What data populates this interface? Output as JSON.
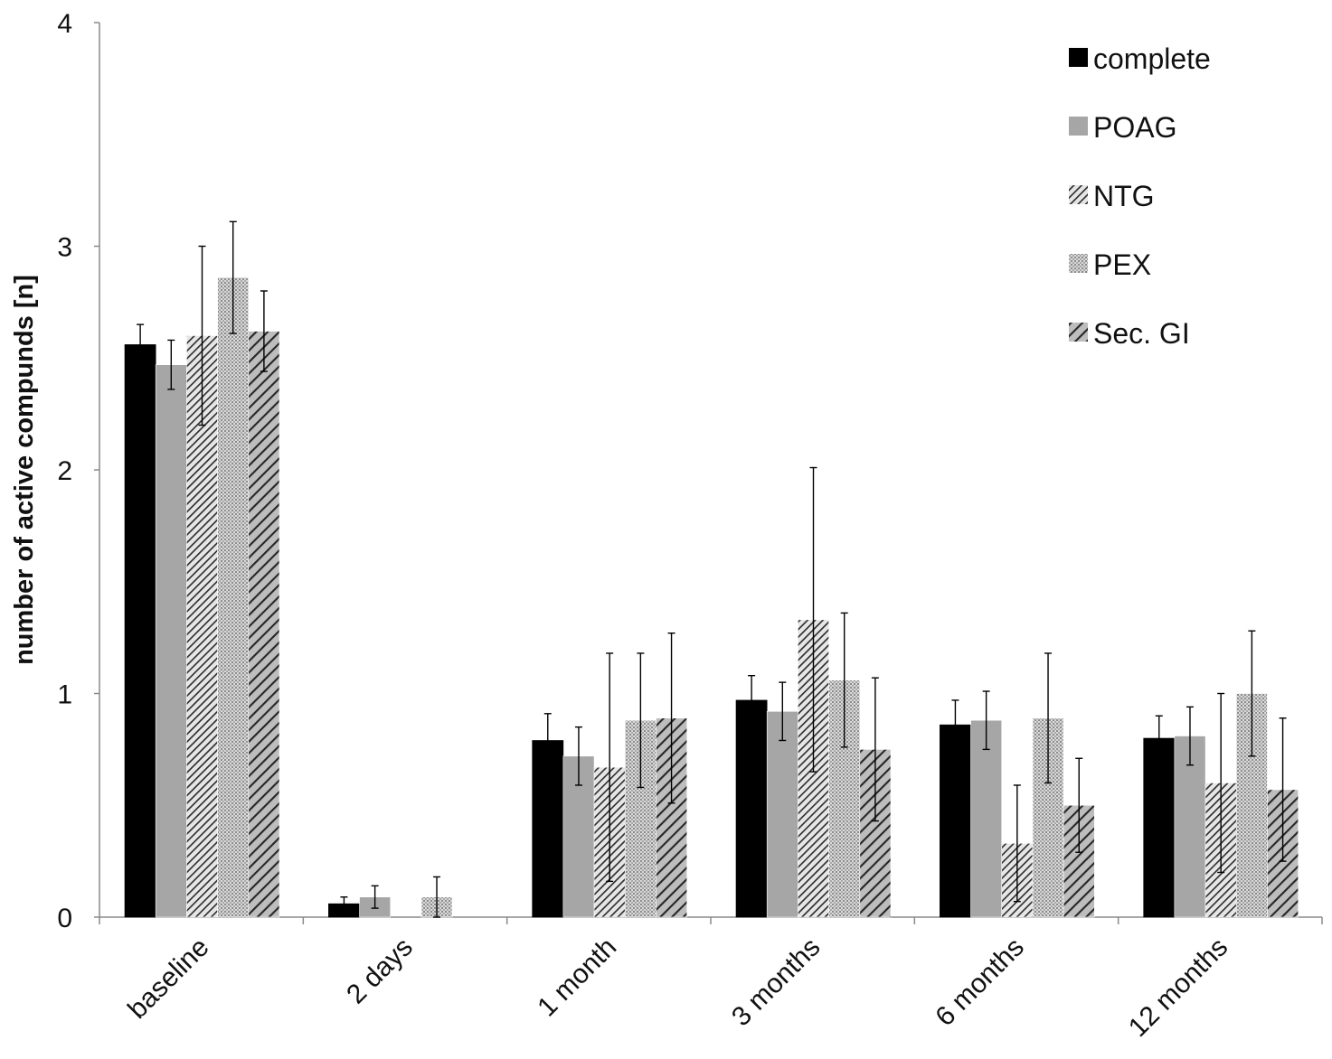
{
  "chart_data": {
    "type": "bar",
    "title": "",
    "xlabel": "",
    "ylabel": "number of active compunds [n]",
    "ylim": [
      0,
      4
    ],
    "yticks": [
      "0",
      "1",
      "2",
      "3",
      "4"
    ],
    "grid": false,
    "legend_position": "top-right",
    "categories": [
      "baseline",
      "2 days",
      "1 month",
      "3 months",
      "6 months",
      "12 months"
    ],
    "series": [
      {
        "name": "complete",
        "fill": "solid-black",
        "values": [
          2.56,
          0.06,
          0.79,
          0.97,
          0.86,
          0.8
        ],
        "errors": [
          0.09,
          0.03,
          0.12,
          0.11,
          0.11,
          0.1
        ]
      },
      {
        "name": "POAG",
        "fill": "solid-gray",
        "values": [
          2.47,
          0.09,
          0.72,
          0.92,
          0.88,
          0.81
        ],
        "errors": [
          0.11,
          0.05,
          0.13,
          0.13,
          0.13,
          0.13
        ]
      },
      {
        "name": "NTG",
        "fill": "dense-diagonal",
        "values": [
          2.6,
          0.0,
          0.67,
          1.33,
          0.33,
          0.6
        ],
        "errors": [
          0.4,
          0.0,
          0.51,
          0.68,
          0.26,
          0.4
        ]
      },
      {
        "name": "PEX",
        "fill": "dotted",
        "values": [
          2.86,
          0.09,
          0.88,
          1.06,
          0.89,
          1.0
        ],
        "errors": [
          0.25,
          0.09,
          0.3,
          0.3,
          0.29,
          0.28
        ]
      },
      {
        "name": "Sec. GI",
        "fill": "wide-diagonal",
        "values": [
          2.62,
          0.0,
          0.89,
          0.75,
          0.5,
          0.57
        ],
        "errors": [
          0.18,
          0.0,
          0.38,
          0.32,
          0.21,
          0.32
        ]
      }
    ]
  }
}
